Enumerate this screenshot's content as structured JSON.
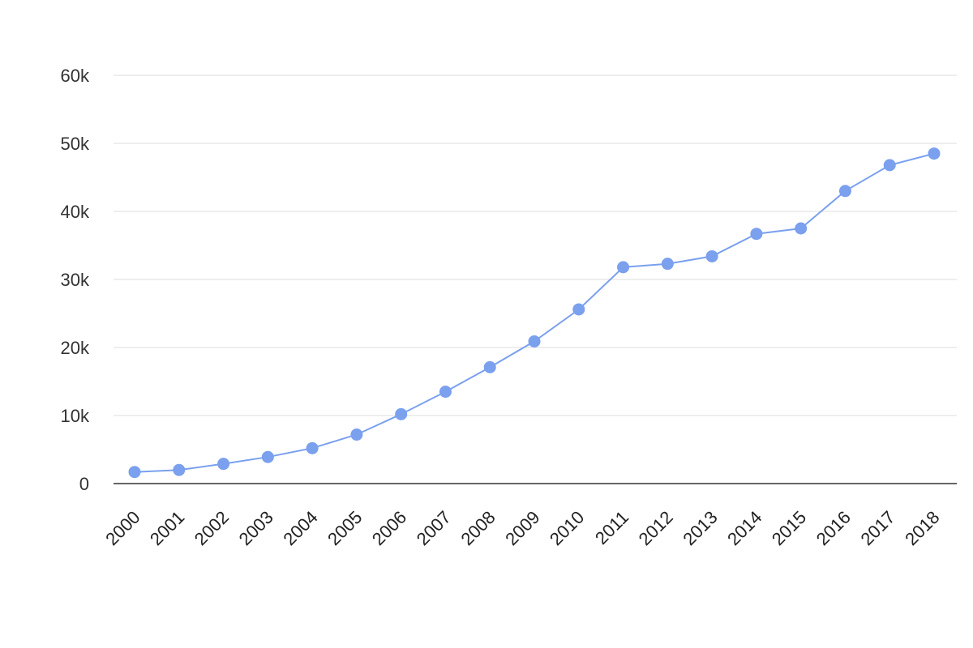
{
  "chart_data": {
    "type": "line",
    "title": "",
    "xlabel": "",
    "ylabel": "",
    "x": [
      "2000",
      "2001",
      "2002",
      "2003",
      "2004",
      "2005",
      "2006",
      "2007",
      "2008",
      "2009",
      "2010",
      "2011",
      "2012",
      "2013",
      "2014",
      "2015",
      "2016",
      "2017",
      "2018"
    ],
    "series": [
      {
        "values": [
          1700,
          2000,
          2900,
          3900,
          5200,
          7200,
          10200,
          13500,
          17100,
          20900,
          25600,
          31800,
          32300,
          33400,
          36700,
          37500,
          43000,
          46800,
          48500
        ],
        "color": "#7aa0ee"
      }
    ],
    "ylim": [
      0,
      60000
    ],
    "yticks": [
      0,
      10000,
      20000,
      30000,
      40000,
      50000,
      60000
    ],
    "ytick_labels": [
      "0",
      "10k",
      "20k",
      "30k",
      "40k",
      "50k",
      "60k"
    ],
    "grid": true,
    "legend": "none"
  }
}
